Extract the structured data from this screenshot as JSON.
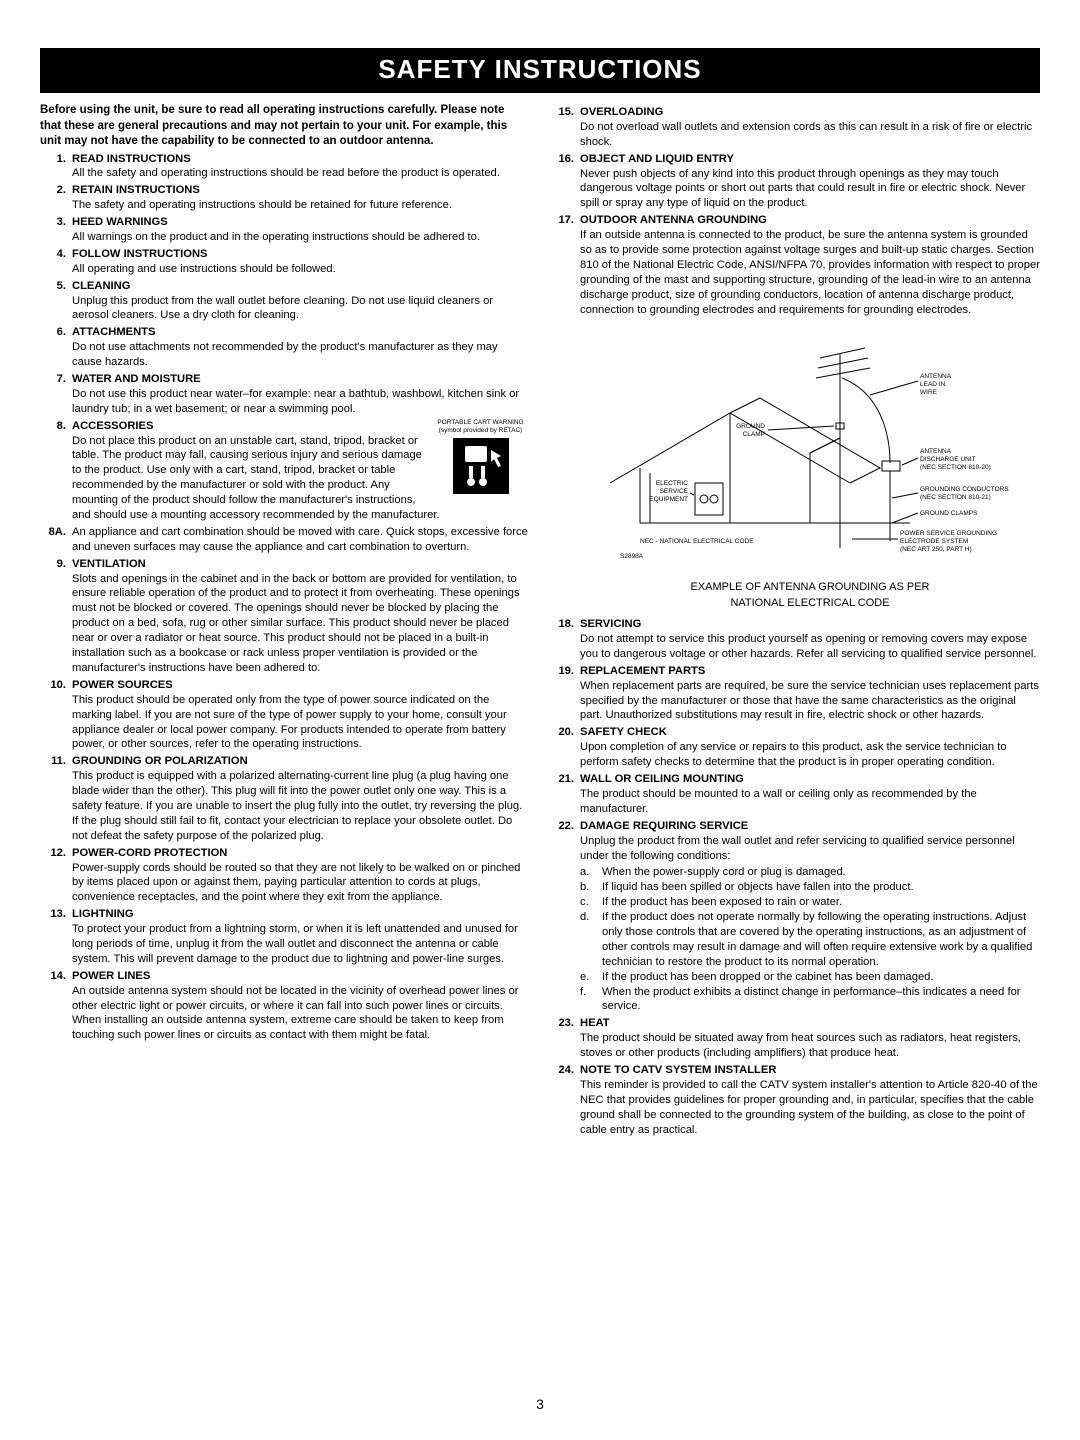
{
  "title": "SAFETY INSTRUCTIONS",
  "intro": "Before using the unit, be sure to read all operating instructions carefully. Please note that these are general precautions and may not pertain to your unit. For example, this unit may not have the capability to be connected to an outdoor antenna.",
  "pageNumber": "3",
  "cart": {
    "line1": "PORTABLE CART WARNING",
    "line2": "(symbol provided by RETAC)"
  },
  "diagram": {
    "caption1": "EXAMPLE OF ANTENNA GROUNDING AS PER",
    "caption2": "NATIONAL ELECTRICAL CODE",
    "labels": {
      "antennaLeadIn": "ANTENNA LEAD IN WIRE",
      "groundClamp": "GROUND CLAMP",
      "dischargeUnit": "ANTENNA DISCHARGE UNIT (NEC SECTION 810-20)",
      "electricService": "ELECTRIC SERVICE EQUIPMENT",
      "groundingConductors": "GROUNDING CONDUCTORS (NEC SECTION 810-21)",
      "groundClamps": "GROUND CLAMPS",
      "powerService": "POWER SERVICE GROUNDING ELECTRODE SYSTEM (NEC ART 250, PART H)",
      "nec": "NEC - NATIONAL ELECTRICAL CODE",
      "ref": "S2898A"
    }
  },
  "left": [
    {
      "n": "1.",
      "h": "READ INSTRUCTIONS",
      "t": "All the safety and operating instructions should be read before the product is operated."
    },
    {
      "n": "2.",
      "h": "RETAIN INSTRUCTIONS",
      "t": "The safety and operating instructions should be retained for future reference."
    },
    {
      "n": "3.",
      "h": "HEED WARNINGS",
      "t": "All warnings on the product and in the operating instructions should be adhered to."
    },
    {
      "n": "4.",
      "h": "FOLLOW INSTRUCTIONS",
      "t": "All operating and use instructions should be followed."
    },
    {
      "n": "5.",
      "h": "CLEANING",
      "t": "Unplug this product from the wall outlet before cleaning. Do not use liquid cleaners or aerosol cleaners. Use a dry cloth for cleaning."
    },
    {
      "n": "6.",
      "h": "ATTACHMENTS",
      "t": "Do not use attachments not recommended by the product's manufacturer as they may cause hazards."
    },
    {
      "n": "7.",
      "h": "WATER AND MOISTURE",
      "t": "Do not use  this product near water–for example: near a bathtub, washbowl, kitchen sink or laundry tub; in a wet basement; or near a swimming pool."
    },
    {
      "n": "8.",
      "h": "ACCESSORIES",
      "t": "Do not place this product on an unstable cart, stand, tripod, bracket or table. The product may fall, causing serious injury and serious damage to the product. Use only with a cart, stand, tripod, bracket or table recommended by the manufacturer or sold with the product. Any mounting of the product should follow the manufacturer's instructions, and should use a mounting accessory recommended by the manufacturer.",
      "cart": true
    },
    {
      "n": "8A.",
      "h": "",
      "t": "An appliance and cart combination should be moved with care. Quick stops, excessive force and uneven surfaces may cause the appliance and cart combination to overturn."
    },
    {
      "n": "9.",
      "h": "VENTILATION",
      "t": "Slots and openings in the cabinet and in the back or bottom are provided for ventilation, to ensure reliable operation of the product and to protect it from overheating. These openings must not be blocked or covered. The openings should never be blocked by placing the product on a bed, sofa, rug or other similar surface. This product should never be placed near or over a radiator or heat source. This product should not be placed in a built-in installation such as a bookcase or rack unless proper ventilation is provided or the manufacturer's instructions have been adhered to."
    },
    {
      "n": "10.",
      "h": "POWER SOURCES",
      "t": "This product should be operated only from the type of power source indicated on the marking label. If you are not sure of the type of power supply to your home, consult your appliance dealer or local power company. For products intended to operate from battery power, or other sources, refer to the operating instructions."
    },
    {
      "n": "11.",
      "h": "GROUNDING OR POLARIZATION",
      "t": "This product is equipped with a polarized alternating-current line plug (a plug having one blade wider than the other). This plug will fit into the power outlet only one way. This is a safety feature. If you are unable to insert the plug fully into the outlet, try reversing the plug. If the plug should still fail to fit, contact your electrician to replace your obsolete outlet. Do not defeat the safety purpose of the polarized plug."
    },
    {
      "n": "12.",
      "h": "POWER-CORD PROTECTION",
      "t": "Power-supply cords should be routed so that they are not likely to be walked on or pinched by items placed upon or against them, paying particular attention to cords at plugs, convenience receptacles, and the point where they exit from the appliance."
    },
    {
      "n": "13.",
      "h": "LIGHTNING",
      "t": "To protect your product from a lightning storm, or when it is left unattended and unused for long periods of time, unplug it from the wall outlet and disconnect the antenna or cable system. This will prevent damage to the product due to lightning and power-line surges."
    },
    {
      "n": "14.",
      "h": "POWER LINES",
      "t": "An outside antenna system should not be located in the vicinity of overhead power lines or other electric light or power circuits, or where it can fall into such power lines or circuits. When installing an outside antenna system, extreme care should be taken to keep from touching such power lines or circuits as contact with them might be fatal."
    }
  ],
  "right": [
    {
      "n": "15.",
      "h": "OVERLOADING",
      "t": "Do not overload wall outlets and extension cords as this can result in a risk of fire or electric shock."
    },
    {
      "n": "16.",
      "h": "OBJECT AND LIQUID ENTRY",
      "t": "Never push objects of any kind into this product through openings as they may touch dangerous voltage points or short out parts that could result in fire or electric shock. Never spill or spray any type of liquid on the product."
    },
    {
      "n": "17.",
      "h": "OUTDOOR ANTENNA GROUNDING",
      "t": "If an outside antenna is connected to the product, be sure the antenna system is grounded so as to provide some protection against voltage surges and built-up static charges. Section 810 of the National Electric Code, ANSI/NFPA 70, provides information with respect to proper grounding of the mast and supporting structure, grounding of the lead-in wire to an antenna discharge product, size of grounding conductors, location of antenna discharge product, connection to grounding electrodes and requirements for grounding electrodes.",
      "diagram": true
    },
    {
      "n": "18.",
      "h": "SERVICING",
      "t": "Do not attempt to service this product yourself as opening or removing covers may expose you to dangerous voltage or other hazards. Refer all servicing to qualified service personnel."
    },
    {
      "n": "19.",
      "h": "REPLACEMENT PARTS",
      "t": "When replacement parts are required, be sure the service technician uses replacement parts specified by the manufacturer or those that have the same characteristics as the original part. Unauthorized substitutions may result in fire, electric shock or other hazards."
    },
    {
      "n": "20.",
      "h": "SAFETY CHECK",
      "t": "Upon completion of any service or repairs to this product, ask the service technician to perform safety checks to determine that the product is in proper operating condition."
    },
    {
      "n": "21.",
      "h": "WALL OR CEILING MOUNTING",
      "t": "The product should be mounted to a wall or ceiling only as recommended by the manufacturer."
    },
    {
      "n": "22.",
      "h": "DAMAGE REQUIRING SERVICE",
      "t": "Unplug the product from the wall outlet and refer servicing to qualified service personnel under the following conditions:",
      "sub": [
        {
          "l": "a.",
          "t": "When the power-supply cord or plug is damaged."
        },
        {
          "l": "b.",
          "t": "If liquid has been spilled or objects have fallen into the product."
        },
        {
          "l": "c.",
          "t": "If the product has been exposed to rain or water."
        },
        {
          "l": "d.",
          "t": "If the product does not operate normally by following the operating instructions. Adjust only those controls that are covered by the operating instructions, as an adjustment of other controls may result in damage and will often require extensive work by a qualified technician to restore the product to its normal operation."
        },
        {
          "l": "e.",
          "t": "If the product has been dropped or the cabinet has been damaged."
        },
        {
          "l": "f.",
          "t": "When the product exhibits a distinct change in performance–this indicates a need for service."
        }
      ]
    },
    {
      "n": "23.",
      "h": "HEAT",
      "t": "The product should be situated away from heat sources such as radiators, heat registers, stoves or other products (including amplifiers) that produce heat."
    },
    {
      "n": "24.",
      "h": "NOTE TO CATV SYSTEM INSTALLER",
      "t": "This reminder is provided to call the CATV system installer's attention to Article 820-40 of the NEC that provides guidelines for proper grounding and, in particular, specifies that the cable ground shall be connected to the grounding system of the building, as close to the point of cable entry as practical."
    }
  ]
}
